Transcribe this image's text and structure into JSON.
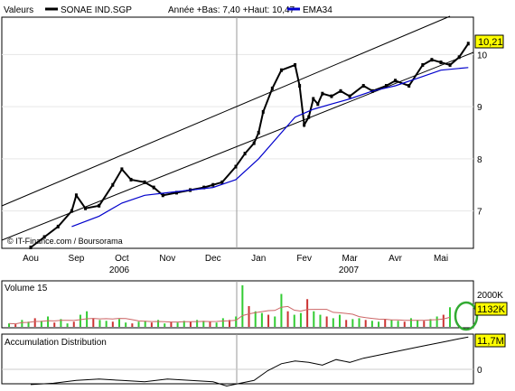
{
  "header": {
    "label": "Valeurs",
    "ticker": "SONAE IND.SGP",
    "stats": "Année +Bas: 7,40 +Haut: 10,47",
    "ema_label": "EMA34"
  },
  "watermark": "© IT-Finance.com / Boursorama",
  "colors": {
    "price_line": "#000000",
    "ema": "#0000cc",
    "volume_up": "#33cc33",
    "volume_down": "#cc3333",
    "volume_avg": "#cc6666",
    "current_tag_bg": "#ffff00",
    "highlight_ring": "#33aa33",
    "crosshair": "#999999"
  },
  "x_axis": {
    "months": [
      "Aou",
      "Sep",
      "Oct",
      "Nov",
      "Dec",
      "Jan",
      "Fev",
      "Mar",
      "Avr",
      "Mai"
    ],
    "years": [
      "2006",
      "2007"
    ]
  },
  "price_panel": {
    "y_ticks": [
      "7",
      "8",
      "9",
      "10"
    ],
    "current_value": "10,21"
  },
  "volume_panel": {
    "title": "Volume 15",
    "y_tick": "2000K",
    "current_value": "1132K"
  },
  "ad_panel": {
    "title": "Accumulation Distribution",
    "y_tick": "0",
    "current_value": "11,7M"
  },
  "chart_data": [
    {
      "type": "line",
      "title": "SONAE IND.SGP",
      "x_labels": [
        "Aou",
        "Sep",
        "Oct",
        "Nov",
        "Dec",
        "Jan",
        "Fev",
        "Mar",
        "Avr",
        "Mai"
      ],
      "ylim": [
        6.3,
        10.7
      ],
      "series": [
        {
          "name": "SONAE IND.SGP",
          "x": [
            0,
            0.3,
            0.6,
            0.9,
            1.0,
            1.2,
            1.5,
            1.8,
            2.0,
            2.2,
            2.5,
            2.7,
            2.9,
            3.2,
            3.5,
            3.8,
            4.0,
            4.2,
            4.5,
            4.7,
            4.9,
            5.0,
            5.1,
            5.3,
            5.5,
            5.8,
            5.9,
            6.0,
            6.1,
            6.2,
            6.3,
            6.4,
            6.6,
            6.8,
            7.0,
            7.3,
            7.5,
            7.8,
            8.0,
            8.3,
            8.6,
            8.8,
            9.0,
            9.2,
            9.4,
            9.6
          ],
          "values": [
            6.3,
            6.5,
            6.7,
            7.0,
            7.3,
            7.05,
            7.1,
            7.5,
            7.8,
            7.6,
            7.55,
            7.45,
            7.3,
            7.35,
            7.4,
            7.45,
            7.5,
            7.55,
            7.85,
            8.1,
            8.3,
            8.5,
            8.9,
            9.35,
            9.7,
            9.8,
            9.4,
            8.65,
            8.8,
            9.15,
            9.05,
            9.25,
            9.2,
            9.3,
            9.2,
            9.4,
            9.3,
            9.4,
            9.5,
            9.4,
            9.8,
            9.9,
            9.85,
            9.8,
            9.95,
            10.21
          ]
        },
        {
          "name": "EMA34",
          "x": [
            0.9,
            1.5,
            2.0,
            2.5,
            3.0,
            3.5,
            4.0,
            4.5,
            5.0,
            5.5,
            5.8,
            6.2,
            6.6,
            7.0,
            7.5,
            8.0,
            8.5,
            9.0,
            9.6
          ],
          "values": [
            6.7,
            6.9,
            7.15,
            7.3,
            7.35,
            7.4,
            7.45,
            7.6,
            8.0,
            8.5,
            8.8,
            8.95,
            9.05,
            9.15,
            9.3,
            9.4,
            9.55,
            9.7,
            9.75
          ]
        }
      ]
    },
    {
      "type": "bar",
      "title": "Volume 15",
      "x_labels": [
        "Aou",
        "Sep",
        "Oct",
        "Nov",
        "Dec",
        "Jan",
        "Fev",
        "Mar",
        "Avr",
        "Mai"
      ],
      "ylim": [
        0,
        2500
      ],
      "series": [
        {
          "name": "Volume 15",
          "values": [
            200,
            150,
            400,
            300,
            500,
            350,
            600,
            250,
            450,
            200,
            300,
            700,
            900,
            500,
            400,
            350,
            300,
            450,
            250,
            200,
            300,
            350,
            250,
            400,
            200,
            300,
            250,
            350,
            300,
            400,
            350,
            300,
            250,
            500,
            400,
            600,
            2400,
            1200,
            900,
            800,
            700,
            600,
            1900,
            900,
            700,
            800,
            1600,
            900,
            700,
            600,
            500,
            700,
            400,
            450,
            500,
            400,
            350,
            300,
            450,
            400,
            350,
            300,
            500,
            400,
            350,
            450,
            600,
            700,
            1132
          ]
        }
      ]
    },
    {
      "type": "line",
      "title": "Accumulation Distribution",
      "x_labels": [
        "Aou",
        "Sep",
        "Oct",
        "Nov",
        "Dec",
        "Jan",
        "Fev",
        "Mar",
        "Avr",
        "Mai"
      ],
      "ylim": [
        -1.5,
        12
      ],
      "series": [
        {
          "name": "Accumulation Distribution",
          "x": [
            0,
            0.5,
            1.0,
            1.5,
            2.0,
            2.5,
            3.0,
            3.5,
            4.0,
            4.3,
            4.6,
            4.9,
            5.2,
            5.5,
            5.8,
            6.1,
            6.4,
            6.7,
            7.0,
            7.3,
            7.6,
            7.9,
            8.2,
            8.5,
            8.8,
            9.1,
            9.4,
            9.6
          ],
          "values": [
            -2.0,
            -1.6,
            -0.8,
            -0.4,
            -0.8,
            -1.2,
            -0.4,
            -0.8,
            -1.2,
            -2.4,
            -1.6,
            -0.8,
            2.0,
            4.0,
            4.8,
            4.4,
            3.6,
            5.2,
            4.4,
            5.6,
            6.4,
            7.2,
            8.0,
            8.8,
            9.6,
            10.4,
            11.2,
            11.7
          ]
        }
      ]
    }
  ]
}
